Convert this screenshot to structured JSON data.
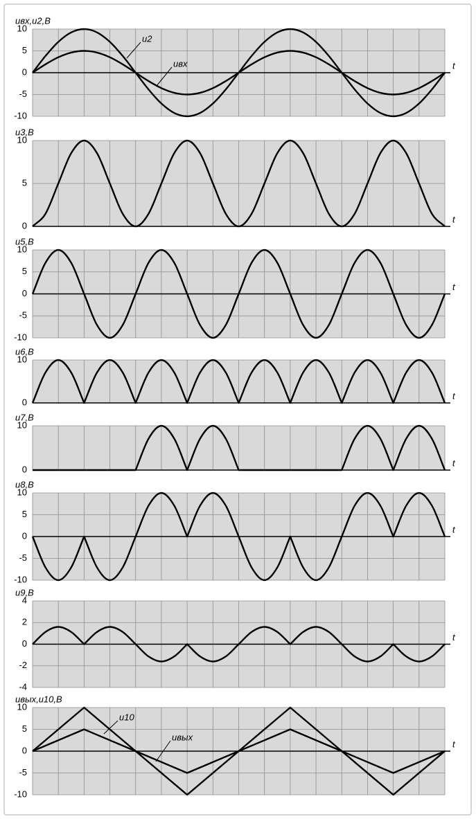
{
  "chart_data": [
    {
      "type": "line",
      "y_label": "uвх,u2,В",
      "x_label": "t",
      "curve": "smooth",
      "x": [
        0,
        0.5,
        1,
        1.5,
        2,
        2.5,
        3,
        3.5,
        4,
        4.5,
        5,
        5.5,
        6,
        6.5,
        7,
        7.5,
        8,
        8.5,
        9,
        9.5,
        10,
        10.5,
        11,
        11.5,
        12,
        12.5,
        13,
        13.5,
        14,
        14.5,
        15,
        15.5,
        16
      ],
      "xlim": [
        0,
        16
      ],
      "xticks": [
        0,
        1,
        2,
        3,
        4,
        5,
        6,
        7,
        8,
        9,
        10,
        11,
        12,
        13,
        14,
        15,
        16
      ],
      "x_tick_labels": false,
      "ylim": [
        -10,
        10
      ],
      "yticks": [
        -10,
        -5,
        0,
        5,
        10
      ],
      "grid": true,
      "annotations": [
        "u2",
        "uвх"
      ],
      "series": [
        {
          "name": "uвх",
          "color": "#000000",
          "values": [
            0,
            1.913,
            3.536,
            4.619,
            5,
            4.619,
            3.536,
            1.913,
            0,
            -1.913,
            -3.536,
            -4.619,
            -5,
            -4.619,
            -3.536,
            -1.913,
            0,
            1.913,
            3.536,
            4.619,
            5,
            4.619,
            3.536,
            1.913,
            0,
            -1.913,
            -3.536,
            -4.619,
            -5,
            -4.619,
            -3.536,
            -1.913,
            0
          ]
        },
        {
          "name": "u2",
          "color": "#000000",
          "values": [
            0,
            3.827,
            7.071,
            9.239,
            10,
            9.239,
            7.071,
            3.827,
            0,
            -3.827,
            -7.071,
            -9.239,
            -10,
            -9.239,
            -7.071,
            -3.827,
            0,
            3.827,
            7.071,
            9.239,
            10,
            9.239,
            7.071,
            3.827,
            0,
            -3.827,
            -7.071,
            -9.239,
            -10,
            -9.239,
            -7.071,
            -3.827,
            0
          ]
        }
      ]
    },
    {
      "type": "line",
      "y_label": "u3,В",
      "x_label": "t",
      "curve": "smooth",
      "x": [
        0,
        0.5,
        1,
        1.5,
        2,
        2.5,
        3,
        3.5,
        4,
        4.5,
        5,
        5.5,
        6,
        6.5,
        7,
        7.5,
        8,
        8.5,
        9,
        9.5,
        10,
        10.5,
        11,
        11.5,
        12,
        12.5,
        13,
        13.5,
        14,
        14.5,
        15,
        15.5,
        16
      ],
      "xlim": [
        0,
        16
      ],
      "xticks": [
        0,
        1,
        2,
        3,
        4,
        5,
        6,
        7,
        8,
        9,
        10,
        11,
        12,
        13,
        14,
        15,
        16
      ],
      "x_tick_labels": false,
      "ylim": [
        0,
        10
      ],
      "yticks": [
        0,
        5,
        10
      ],
      "grid": true,
      "series": [
        {
          "name": "u3",
          "color": "#000000",
          "values": [
            0,
            1.464,
            5,
            8.536,
            10,
            8.536,
            5,
            1.464,
            0,
            1.464,
            5,
            8.536,
            10,
            8.536,
            5,
            1.464,
            0,
            1.464,
            5,
            8.536,
            10,
            8.536,
            5,
            1.464,
            0,
            1.464,
            5,
            8.536,
            10,
            8.536,
            5,
            1.464,
            0
          ]
        }
      ]
    },
    {
      "type": "line",
      "y_label": "u5,В",
      "x_label": "t",
      "curve": "smooth",
      "x": [
        0,
        0.5,
        1,
        1.5,
        2,
        2.5,
        3,
        3.5,
        4,
        4.5,
        5,
        5.5,
        6,
        6.5,
        7,
        7.5,
        8,
        8.5,
        9,
        9.5,
        10,
        10.5,
        11,
        11.5,
        12,
        12.5,
        13,
        13.5,
        14,
        14.5,
        15,
        15.5,
        16
      ],
      "xlim": [
        0,
        16
      ],
      "xticks": [
        0,
        1,
        2,
        3,
        4,
        5,
        6,
        7,
        8,
        9,
        10,
        11,
        12,
        13,
        14,
        15,
        16
      ],
      "x_tick_labels": false,
      "ylim": [
        -10,
        10
      ],
      "yticks": [
        -10,
        -5,
        0,
        5,
        10
      ],
      "grid": true,
      "series": [
        {
          "name": "u5",
          "color": "#000000",
          "values": [
            0,
            7.071,
            10,
            7.071,
            0,
            -7.071,
            -10,
            -7.071,
            0,
            7.071,
            10,
            7.071,
            0,
            -7.071,
            -10,
            -7.071,
            0,
            7.071,
            10,
            7.071,
            0,
            -7.071,
            -10,
            -7.071,
            0,
            7.071,
            10,
            7.071,
            0,
            -7.071,
            -10,
            -7.071,
            0
          ]
        }
      ]
    },
    {
      "type": "line",
      "y_label": "u6,В",
      "x_label": "t",
      "curve": "cusped",
      "x": [
        0,
        0.5,
        1,
        1.5,
        2,
        2.5,
        3,
        3.5,
        4,
        4.5,
        5,
        5.5,
        6,
        6.5,
        7,
        7.5,
        8,
        8.5,
        9,
        9.5,
        10,
        10.5,
        11,
        11.5,
        12,
        12.5,
        13,
        13.5,
        14,
        14.5,
        15,
        15.5,
        16
      ],
      "xlim": [
        0,
        16
      ],
      "xticks": [
        0,
        1,
        2,
        3,
        4,
        5,
        6,
        7,
        8,
        9,
        10,
        11,
        12,
        13,
        14,
        15,
        16
      ],
      "x_tick_labels": false,
      "ylim": [
        0,
        10
      ],
      "yticks": [
        0,
        10
      ],
      "grid": true,
      "series": [
        {
          "name": "u6",
          "color": "#000000",
          "values": [
            0,
            7.071,
            10,
            7.071,
            0,
            7.071,
            10,
            7.071,
            0,
            7.071,
            10,
            7.071,
            0,
            7.071,
            10,
            7.071,
            0,
            7.071,
            10,
            7.071,
            0,
            7.071,
            10,
            7.071,
            0,
            7.071,
            10,
            7.071,
            0,
            7.071,
            10,
            7.071,
            0
          ]
        }
      ]
    },
    {
      "type": "line",
      "y_label": "u7,В",
      "x_label": "t",
      "curve": "cusped",
      "x": [
        0,
        0.5,
        1,
        1.5,
        2,
        2.5,
        3,
        3.5,
        4,
        4.5,
        5,
        5.5,
        6,
        6.5,
        7,
        7.5,
        8,
        8.5,
        9,
        9.5,
        10,
        10.5,
        11,
        11.5,
        12,
        12.5,
        13,
        13.5,
        14,
        14.5,
        15,
        15.5,
        16
      ],
      "xlim": [
        0,
        16
      ],
      "xticks": [
        0,
        1,
        2,
        3,
        4,
        5,
        6,
        7,
        8,
        9,
        10,
        11,
        12,
        13,
        14,
        15,
        16
      ],
      "x_tick_labels": false,
      "ylim": [
        0,
        10
      ],
      "yticks": [
        0,
        10
      ],
      "grid": true,
      "series": [
        {
          "name": "u7",
          "color": "#000000",
          "values": [
            0,
            0,
            0,
            0,
            0,
            0,
            0,
            0,
            0,
            7.071,
            10,
            7.071,
            0,
            7.071,
            10,
            7.071,
            0,
            0,
            0,
            0,
            0,
            0,
            0,
            0,
            0,
            7.071,
            10,
            7.071,
            0,
            7.071,
            10,
            7.071,
            0
          ]
        }
      ]
    },
    {
      "type": "line",
      "y_label": "u8,В",
      "x_label": "t",
      "curve": "cusped",
      "x": [
        0,
        0.5,
        1,
        1.5,
        2,
        2.5,
        3,
        3.5,
        4,
        4.5,
        5,
        5.5,
        6,
        6.5,
        7,
        7.5,
        8,
        8.5,
        9,
        9.5,
        10,
        10.5,
        11,
        11.5,
        12,
        12.5,
        13,
        13.5,
        14,
        14.5,
        15,
        15.5,
        16
      ],
      "xlim": [
        0,
        16
      ],
      "xticks": [
        0,
        1,
        2,
        3,
        4,
        5,
        6,
        7,
        8,
        9,
        10,
        11,
        12,
        13,
        14,
        15,
        16
      ],
      "x_tick_labels": false,
      "ylim": [
        -10,
        10
      ],
      "yticks": [
        -10,
        -5,
        0,
        5,
        10
      ],
      "grid": true,
      "series": [
        {
          "name": "u8",
          "color": "#000000",
          "values": [
            0,
            -7.071,
            -10,
            -7.071,
            0,
            -7.071,
            -10,
            -7.071,
            0,
            7.071,
            10,
            7.071,
            0,
            7.071,
            10,
            7.071,
            0,
            -7.071,
            -10,
            -7.071,
            0,
            -7.071,
            -10,
            -7.071,
            0,
            7.071,
            10,
            7.071,
            0,
            7.071,
            10,
            7.071,
            0
          ]
        }
      ]
    },
    {
      "type": "line",
      "y_label": "u9,В",
      "x_label": "t",
      "curve": "cusped",
      "x": [
        0,
        0.5,
        1,
        1.5,
        2,
        2.5,
        3,
        3.5,
        4,
        4.5,
        5,
        5.5,
        6,
        6.5,
        7,
        7.5,
        8,
        8.5,
        9,
        9.5,
        10,
        10.5,
        11,
        11.5,
        12,
        12.5,
        13,
        13.5,
        14,
        14.5,
        15,
        15.5,
        16
      ],
      "xlim": [
        0,
        16
      ],
      "xticks": [
        0,
        1,
        2,
        3,
        4,
        5,
        6,
        7,
        8,
        9,
        10,
        11,
        12,
        13,
        14,
        15,
        16
      ],
      "x_tick_labels": false,
      "ylim": [
        -4,
        4
      ],
      "yticks": [
        -4,
        -2,
        0,
        2,
        4
      ],
      "grid": true,
      "series": [
        {
          "name": "u9",
          "color": "#000000",
          "values": [
            0,
            1.131,
            1.6,
            1.131,
            0,
            1.131,
            1.6,
            1.131,
            0,
            -1.131,
            -1.6,
            -1.131,
            0,
            -1.131,
            -1.6,
            -1.131,
            0,
            1.131,
            1.6,
            1.131,
            0,
            1.131,
            1.6,
            1.131,
            0,
            -1.131,
            -1.6,
            -1.131,
            0,
            -1.131,
            -1.6,
            -1.131,
            0
          ]
        }
      ]
    },
    {
      "type": "line",
      "y_label": "uвых,u10,В",
      "x_label": "t",
      "curve": "linear",
      "x": [
        0,
        2,
        4,
        6,
        8,
        10,
        12,
        14,
        16
      ],
      "xlim": [
        0,
        16
      ],
      "xticks": [
        0,
        1,
        2,
        3,
        4,
        5,
        6,
        7,
        8,
        9,
        10,
        11,
        12,
        13,
        14,
        15,
        16
      ],
      "x_tick_labels": false,
      "ylim": [
        -10,
        10
      ],
      "yticks": [
        -10,
        -5,
        0,
        5,
        10
      ],
      "grid": true,
      "annotations": [
        "u10",
        "uвых"
      ],
      "series": [
        {
          "name": "u10",
          "color": "#000000",
          "values": [
            0,
            10,
            0,
            -10,
            0,
            10,
            0,
            -10,
            0
          ]
        },
        {
          "name": "uвых",
          "color": "#000000",
          "values": [
            0,
            5,
            0,
            -5,
            0,
            5,
            0,
            -5,
            0
          ]
        }
      ]
    }
  ]
}
